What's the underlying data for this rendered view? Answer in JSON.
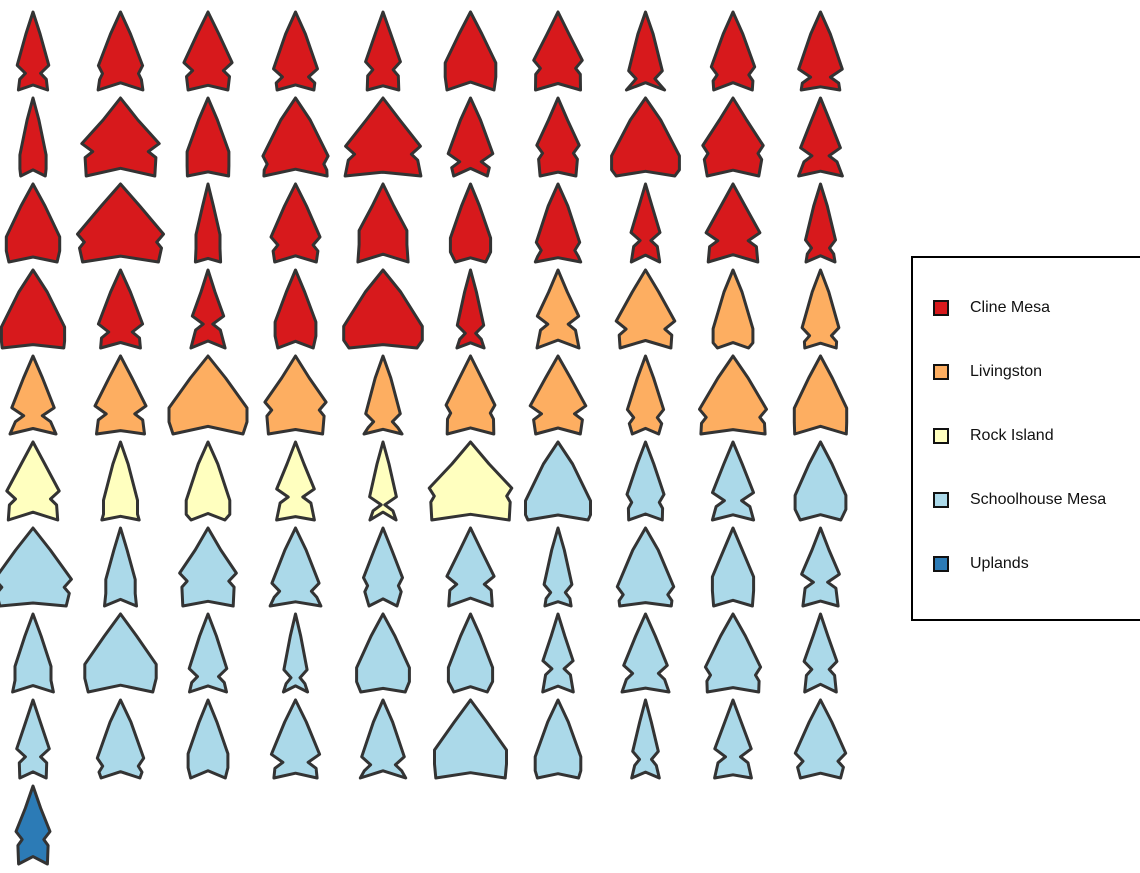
{
  "legend": {
    "items": [
      {
        "name": "Cline Mesa",
        "color": "#d7191c",
        "count": 36
      },
      {
        "name": "Livingston",
        "color": "#fdae61",
        "count": 14
      },
      {
        "name": "Rock Island",
        "color": "#ffffbf",
        "count": 6
      },
      {
        "name": "Schoolhouse Mesa",
        "color": "#abd9e9",
        "count": 34
      },
      {
        "name": "Uplands",
        "color": "#2c7bb6",
        "count": 1
      }
    ]
  }
}
